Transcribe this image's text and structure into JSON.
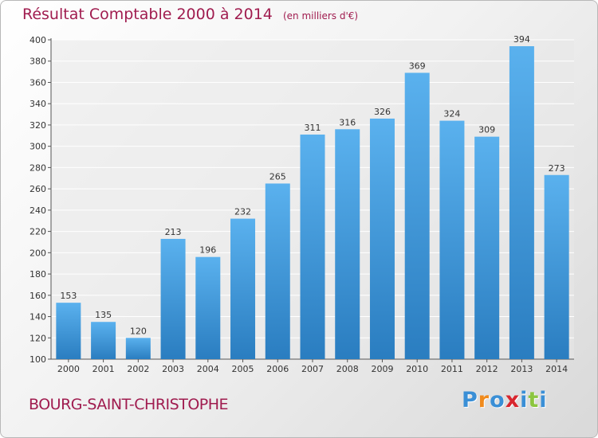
{
  "chart_data": {
    "type": "bar",
    "title": "Résultat Comptable 2000 à 2014",
    "unit_label": "(en milliers d'€)",
    "categories": [
      "2000",
      "2001",
      "2002",
      "2003",
      "2004",
      "2005",
      "2006",
      "2007",
      "2008",
      "2009",
      "2010",
      "2011",
      "2012",
      "2013",
      "2014"
    ],
    "values": [
      153,
      135,
      120,
      213,
      196,
      232,
      265,
      311,
      316,
      326,
      369,
      324,
      309,
      394,
      273
    ],
    "ylim": [
      100,
      400
    ],
    "yticks": [
      100,
      120,
      140,
      160,
      180,
      200,
      220,
      240,
      260,
      280,
      300,
      320,
      340,
      360,
      380,
      400
    ],
    "grid": true,
    "xlabel": "",
    "ylabel": ""
  },
  "footer": {
    "place_name": "BOURG-SAINT-CHRISTOPHE",
    "logo_text": "Proxiti"
  },
  "colors": {
    "title": "#a01c4f",
    "bar_top": "#5ab1ee",
    "bar_bottom": "#2a7dc0",
    "grid": "#ffffff",
    "logo": [
      "#3a8fd6",
      "#f08a1c",
      "#3a8fd6",
      "#d8262e",
      "#3a8fd6",
      "#8cc63f",
      "#3a8fd6"
    ]
  }
}
